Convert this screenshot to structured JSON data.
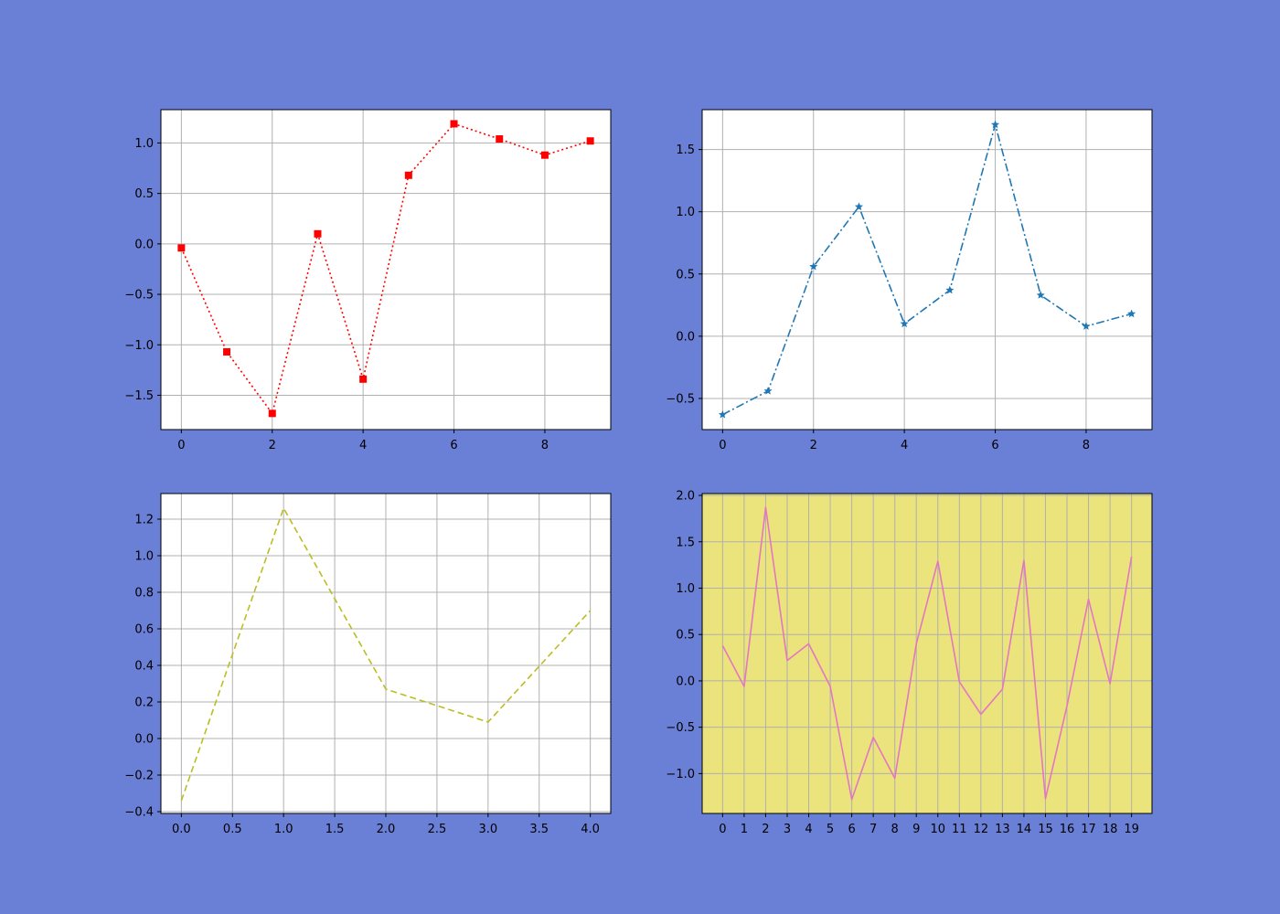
{
  "figure": {
    "background": "#6a7fd6"
  },
  "chart_data": [
    {
      "type": "line",
      "id": "plot1",
      "title": "",
      "xlabel": "",
      "ylabel": "",
      "grid": true,
      "background": "#ffffff",
      "xlim": [
        -0.45,
        9.45
      ],
      "ylim": [
        -1.84,
        1.33
      ],
      "xticks": [
        0,
        2,
        4,
        6,
        8
      ],
      "xtick_labels": [
        "0",
        "2",
        "4",
        "6",
        "8"
      ],
      "yticks": [
        -1.5,
        -1.0,
        -0.5,
        0.0,
        0.5,
        1.0
      ],
      "ytick_labels": [
        "−1.5",
        "−1.0",
        "−0.5",
        "0.0",
        "0.5",
        "1.0"
      ],
      "series": [
        {
          "x": [
            0,
            1,
            2,
            3,
            4,
            5,
            6,
            7,
            8,
            9
          ],
          "y": [
            -0.04,
            -1.07,
            -1.68,
            0.1,
            -1.34,
            0.68,
            1.19,
            1.04,
            0.88,
            1.02
          ],
          "color": "#ff0000",
          "line_style": "dotted",
          "marker": "square"
        }
      ]
    },
    {
      "type": "line",
      "id": "plot2",
      "title": "",
      "xlabel": "",
      "ylabel": "",
      "grid": true,
      "background": "#ffffff",
      "xlim": [
        -0.45,
        9.45
      ],
      "ylim": [
        -0.75,
        1.82
      ],
      "xticks": [
        0,
        2,
        4,
        6,
        8
      ],
      "xtick_labels": [
        "0",
        "2",
        "4",
        "6",
        "8"
      ],
      "yticks": [
        -0.5,
        0.0,
        0.5,
        1.0,
        1.5
      ],
      "ytick_labels": [
        "−0.5",
        "0.0",
        "0.5",
        "1.0",
        "1.5"
      ],
      "series": [
        {
          "x": [
            0,
            1,
            2,
            3,
            4,
            5,
            6,
            7,
            8,
            9
          ],
          "y": [
            -0.63,
            -0.44,
            0.56,
            1.04,
            0.1,
            0.37,
            1.7,
            0.33,
            0.08,
            0.18
          ],
          "color": "#1f77b4",
          "line_style": "dashdot",
          "marker": "star"
        }
      ]
    },
    {
      "type": "line",
      "id": "plot3",
      "title": "",
      "xlabel": "",
      "ylabel": "",
      "grid": true,
      "background": "#ffffff",
      "xlim": [
        -0.2,
        4.2
      ],
      "ylim": [
        -0.41,
        1.34
      ],
      "xticks": [
        0.0,
        0.5,
        1.0,
        1.5,
        2.0,
        2.5,
        3.0,
        3.5,
        4.0
      ],
      "xtick_labels": [
        "0.0",
        "0.5",
        "1.0",
        "1.5",
        "2.0",
        "2.5",
        "3.0",
        "3.5",
        "4.0"
      ],
      "yticks": [
        -0.4,
        -0.2,
        0.0,
        0.2,
        0.4,
        0.6,
        0.8,
        1.0,
        1.2
      ],
      "ytick_labels": [
        "−0.4",
        "−0.2",
        "0.0",
        "0.2",
        "0.4",
        "0.6",
        "0.8",
        "1.0",
        "1.2"
      ],
      "series": [
        {
          "x": [
            0,
            1,
            2,
            3,
            4
          ],
          "y": [
            -0.34,
            1.26,
            0.27,
            0.09,
            0.7
          ],
          "color": "#bcbd22",
          "line_style": "dashed",
          "marker": "none"
        }
      ]
    },
    {
      "type": "line",
      "id": "plot4",
      "title": "",
      "xlabel": "",
      "ylabel": "",
      "grid": true,
      "background": "#ebe37b",
      "xlim": [
        -0.95,
        19.95
      ],
      "ylim": [
        -1.43,
        2.02
      ],
      "xticks": [
        0,
        1,
        2,
        3,
        4,
        5,
        6,
        7,
        8,
        9,
        10,
        11,
        12,
        13,
        14,
        15,
        16,
        17,
        18,
        19
      ],
      "xtick_labels": [
        "0",
        "1",
        "2",
        "3",
        "4",
        "5",
        "6",
        "7",
        "8",
        "9",
        "10",
        "11",
        "12",
        "13",
        "14",
        "15",
        "16",
        "17",
        "18",
        "19"
      ],
      "yticks": [
        -1.0,
        -0.5,
        0.0,
        0.5,
        1.0,
        1.5,
        2.0
      ],
      "ytick_labels": [
        "−1.0",
        "−0.5",
        "0.0",
        "0.5",
        "1.0",
        "1.5",
        "2.0"
      ],
      "series": [
        {
          "x": [
            0,
            1,
            2,
            3,
            4,
            5,
            6,
            7,
            8,
            9,
            10,
            11,
            12,
            13,
            14,
            15,
            16,
            17,
            18,
            19
          ],
          "y": [
            0.38,
            -0.06,
            1.87,
            0.22,
            0.4,
            -0.06,
            -1.28,
            -0.61,
            -1.05,
            0.4,
            1.29,
            -0.01,
            -0.36,
            -0.09,
            1.3,
            -1.27,
            -0.27,
            0.88,
            -0.03,
            1.34
          ],
          "color": "#e377c2",
          "line_style": "solid",
          "marker": "none"
        }
      ]
    }
  ]
}
